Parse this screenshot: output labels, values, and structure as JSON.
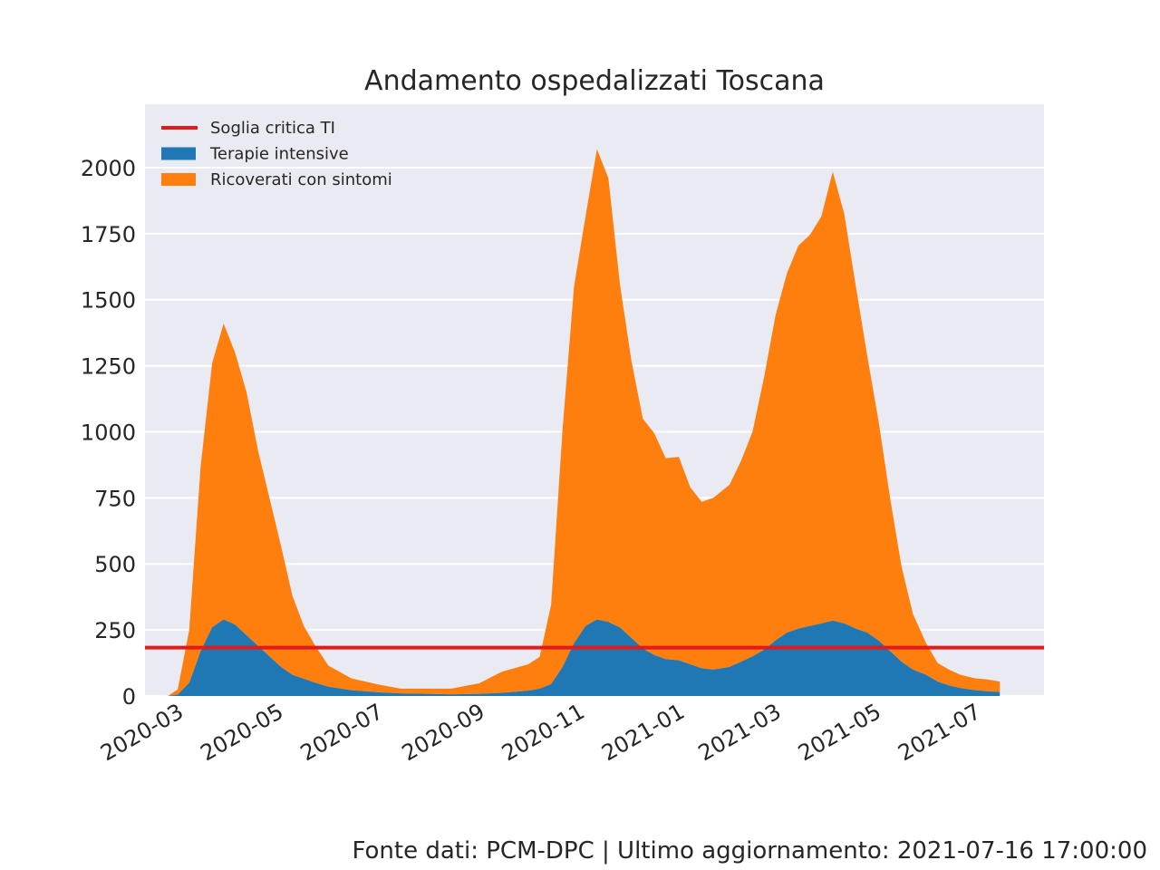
{
  "chart_data": {
    "type": "area",
    "title": "Andamento ospedalizzati Toscana",
    "xlabel": "",
    "ylabel": "",
    "ylim": [
      0,
      2240
    ],
    "xlim": [
      "2020-02-10",
      "2021-08-12"
    ],
    "yticks": [
      0,
      250,
      500,
      750,
      1000,
      1250,
      1500,
      1750,
      2000
    ],
    "xticks": [
      "2020-03",
      "2020-05",
      "2020-07",
      "2020-09",
      "2020-11",
      "2021-01",
      "2021-03",
      "2021-05",
      "2021-07"
    ],
    "grid": true,
    "legend_position": "top-left",
    "stacked": true,
    "x": [
      "2020-02-24",
      "2020-03-01",
      "2020-03-08",
      "2020-03-15",
      "2020-03-22",
      "2020-03-29",
      "2020-04-05",
      "2020-04-12",
      "2020-04-19",
      "2020-04-26",
      "2020-05-03",
      "2020-05-10",
      "2020-05-17",
      "2020-05-24",
      "2020-06-01",
      "2020-06-15",
      "2020-07-01",
      "2020-07-15",
      "2020-08-01",
      "2020-08-15",
      "2020-09-01",
      "2020-09-15",
      "2020-10-01",
      "2020-10-08",
      "2020-10-15",
      "2020-10-22",
      "2020-10-29",
      "2020-11-05",
      "2020-11-12",
      "2020-11-19",
      "2020-11-26",
      "2020-12-03",
      "2020-12-10",
      "2020-12-17",
      "2020-12-24",
      "2021-01-01",
      "2021-01-08",
      "2021-01-15",
      "2021-01-22",
      "2021-02-01",
      "2021-02-08",
      "2021-02-15",
      "2021-02-22",
      "2021-03-01",
      "2021-03-08",
      "2021-03-15",
      "2021-03-22",
      "2021-03-29",
      "2021-04-05",
      "2021-04-12",
      "2021-04-19",
      "2021-04-26",
      "2021-05-03",
      "2021-05-10",
      "2021-05-17",
      "2021-05-24",
      "2021-06-01",
      "2021-06-08",
      "2021-06-15",
      "2021-06-22",
      "2021-07-01",
      "2021-07-08",
      "2021-07-16"
    ],
    "series": [
      {
        "name": "Terapie intensive",
        "color": "#1f77b4",
        "values": [
          0,
          5,
          50,
          170,
          260,
          290,
          270,
          230,
          190,
          150,
          110,
          80,
          65,
          50,
          35,
          22,
          14,
          10,
          8,
          6,
          8,
          12,
          20,
          28,
          45,
          110,
          200,
          265,
          290,
          280,
          260,
          220,
          180,
          155,
          140,
          135,
          120,
          105,
          100,
          110,
          130,
          150,
          175,
          210,
          240,
          255,
          265,
          275,
          285,
          275,
          255,
          240,
          210,
          170,
          130,
          100,
          80,
          55,
          40,
          30,
          22,
          18,
          15
        ]
      },
      {
        "name": "Ricoverati con sintomi",
        "color": "#ff7f0e",
        "values": [
          0,
          20,
          200,
          700,
          1000,
          1120,
          1030,
          920,
          740,
          600,
          460,
          300,
          200,
          140,
          80,
          45,
          30,
          18,
          20,
          22,
          40,
          80,
          100,
          120,
          300,
          900,
          1350,
          1550,
          1780,
          1680,
          1300,
          1050,
          870,
          840,
          760,
          770,
          670,
          630,
          650,
          690,
          760,
          850,
          1030,
          1230,
          1360,
          1450,
          1480,
          1540,
          1700,
          1550,
          1300,
          1050,
          830,
          580,
          360,
          210,
          120,
          70,
          60,
          50,
          45,
          45,
          40
        ]
      }
    ],
    "threshold": {
      "name": "Soglia critica TI",
      "value": 183,
      "color": "#e31a1c"
    },
    "legend": [
      "Soglia critica TI",
      "Terapie intensive",
      "Ricoverati con sintomi"
    ]
  },
  "footer": {
    "text": "Fonte dati: PCM-DPC | Ultimo aggiornamento: 2021-07-16 17:00:00"
  },
  "colors": {
    "plot_background": "#eaeaf2",
    "gridline": "#ffffff"
  }
}
